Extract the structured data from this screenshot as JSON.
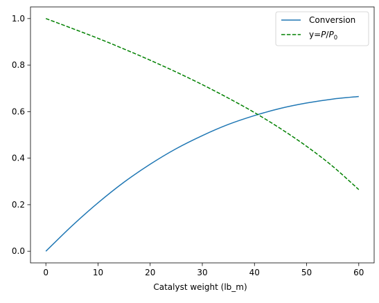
{
  "chart_data": {
    "type": "line",
    "title": "",
    "xlabel": "Catalyst weight (lb_m)",
    "ylabel": "",
    "xlim": [
      -2.95,
      62.95
    ],
    "ylim": [
      -0.05,
      1.05
    ],
    "xticks": [
      0,
      10,
      20,
      30,
      40,
      50,
      60
    ],
    "yticks": [
      0.0,
      0.2,
      0.4,
      0.6,
      0.8,
      1.0
    ],
    "xtick_labels": [
      "0",
      "10",
      "20",
      "30",
      "40",
      "50",
      "60"
    ],
    "ytick_labels": [
      "0.0",
      "0.2",
      "0.4",
      "0.6",
      "0.8",
      "1.0"
    ],
    "grid": false,
    "legend_position": "top-right",
    "series": [
      {
        "name": "Conversion",
        "color": "#1f77b4",
        "style": "solid",
        "x": [
          0,
          5,
          10,
          15,
          20,
          25,
          30,
          35,
          40,
          45,
          50,
          55,
          60
        ],
        "y": [
          0.0,
          0.109,
          0.208,
          0.297,
          0.374,
          0.441,
          0.497,
          0.545,
          0.583,
          0.614,
          0.637,
          0.654,
          0.665
        ]
      },
      {
        "name": "y=P/P0",
        "name_parts": {
          "prefix": "y=",
          "num": "P",
          "sep": "/",
          "den": "P",
          "sub": "0"
        },
        "color": "#008000",
        "style": "dashed",
        "x": [
          0,
          5,
          10,
          15,
          20,
          25,
          30,
          35,
          40,
          45,
          50,
          55,
          60
        ],
        "y": [
          1.0,
          0.958,
          0.915,
          0.869,
          0.821,
          0.77,
          0.716,
          0.658,
          0.596,
          0.527,
          0.451,
          0.365,
          0.265
        ]
      }
    ]
  }
}
